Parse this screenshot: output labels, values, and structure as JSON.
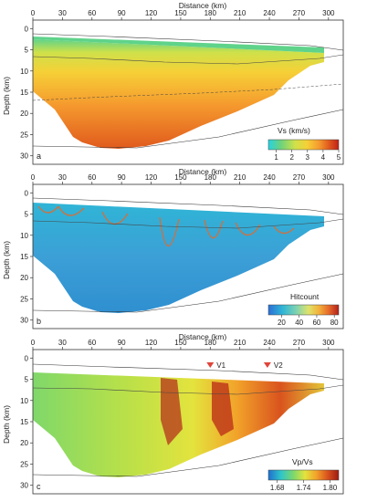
{
  "chart_data": [
    {
      "type": "heatmap",
      "panel_label": "a",
      "xlabel": "Distance (km)",
      "ylabel": "Depth (km)",
      "x_ticks": [
        0,
        30,
        60,
        90,
        120,
        150,
        180,
        210,
        240,
        270,
        300
      ],
      "y_ticks": [
        0,
        5,
        10,
        15,
        20,
        25,
        30
      ],
      "xlim": [
        0,
        315
      ],
      "ylim": [
        -2,
        32
      ],
      "colorbar": {
        "title": "Vs (km/s)",
        "ticks": [
          "1",
          "2",
          "3",
          "4",
          "5"
        ],
        "range": [
          0.5,
          5
        ],
        "colors": [
          "#26d3e3",
          "#6fd27a",
          "#cfe14a",
          "#f6d037",
          "#f59a2e",
          "#e05a1d",
          "#c02018"
        ]
      },
      "model": {
        "top_depth": 0.3,
        "bottom_depth": 28,
        "value_top": 1.6,
        "value_bottom": 4.3
      }
    },
    {
      "type": "heatmap",
      "panel_label": "b",
      "xlabel": "Distance (km)",
      "ylabel": "Depth (km)",
      "x_ticks": [
        0,
        30,
        60,
        90,
        120,
        150,
        180,
        210,
        240,
        270,
        300
      ],
      "y_ticks": [
        0,
        5,
        10,
        15,
        20,
        25,
        30
      ],
      "xlim": [
        0,
        315
      ],
      "ylim": [
        -2,
        32
      ],
      "colorbar": {
        "title": "Hitcount",
        "ticks": [
          "20",
          "40",
          "60",
          "80"
        ],
        "range": [
          5,
          85
        ],
        "colors": [
          "#2b6fd6",
          "#2fb5d6",
          "#7fd3b0",
          "#dfe36a",
          "#f2b13b",
          "#e5692a",
          "#b3201c"
        ]
      },
      "model": {
        "top_depth": 0.3,
        "bottom_depth": 28,
        "value_top": 30,
        "value_bottom": 25
      }
    },
    {
      "type": "heatmap",
      "panel_label": "c",
      "xlabel": "Distance (km)",
      "ylabel": "Depth (km)",
      "x_ticks": [
        0,
        30,
        60,
        90,
        120,
        150,
        180,
        210,
        240,
        270,
        300
      ],
      "y_ticks": [
        0,
        5,
        10,
        15,
        20,
        25,
        30
      ],
      "xlim": [
        0,
        315
      ],
      "ylim": [
        -2,
        32
      ],
      "colorbar": {
        "title": "Vp/Vs",
        "ticks": [
          "1.68",
          "1.74",
          "1.80"
        ],
        "range": [
          1.66,
          1.82
        ],
        "colors": [
          "#1f6fd0",
          "#2fc6c8",
          "#7fd86a",
          "#e3e33d",
          "#f2a32a",
          "#d9531e",
          "#9e1a12"
        ]
      },
      "model": {
        "top_depth": 2.5,
        "bottom_depth": 28,
        "value_top": 1.71,
        "value_bottom": 1.73
      },
      "annotations": [
        {
          "label": "V1",
          "x": 180
        },
        {
          "label": "V2",
          "x": 238
        }
      ]
    }
  ]
}
